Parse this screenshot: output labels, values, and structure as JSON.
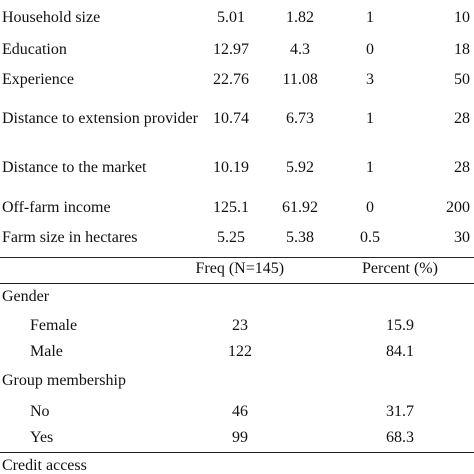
{
  "continuous": {
    "rows": [
      [
        "Household size",
        "5.01",
        "1.82",
        "1",
        "10"
      ],
      [
        "Education",
        "12.97",
        "4.3",
        "0",
        "18"
      ],
      [
        "Experience",
        "22.76",
        "11.08",
        "3",
        "50"
      ],
      [
        "Distance to extension provider",
        "10.74",
        "6.73",
        "1",
        "28"
      ],
      [
        "Distance to the market",
        "10.19",
        "5.92",
        "1",
        "28"
      ],
      [
        "Off-farm income",
        "125.1",
        "61.92",
        "0",
        "200"
      ],
      [
        "Farm size in hectares",
        "5.25",
        "5.38",
        "0.5",
        "30"
      ]
    ]
  },
  "categorical": {
    "header": [
      "Freq (N=145)",
      "Percent (%)"
    ],
    "groups": [
      {
        "label": "Gender",
        "rows": [
          [
            "Female",
            "23",
            "15.9"
          ],
          [
            "Male",
            "122",
            "84.1"
          ]
        ]
      },
      {
        "label": "Group membership",
        "rows": [
          [
            "No",
            "46",
            "31.7"
          ],
          [
            "Yes",
            "99",
            "68.3"
          ]
        ]
      },
      {
        "label": "Credit access",
        "rows": []
      }
    ]
  }
}
